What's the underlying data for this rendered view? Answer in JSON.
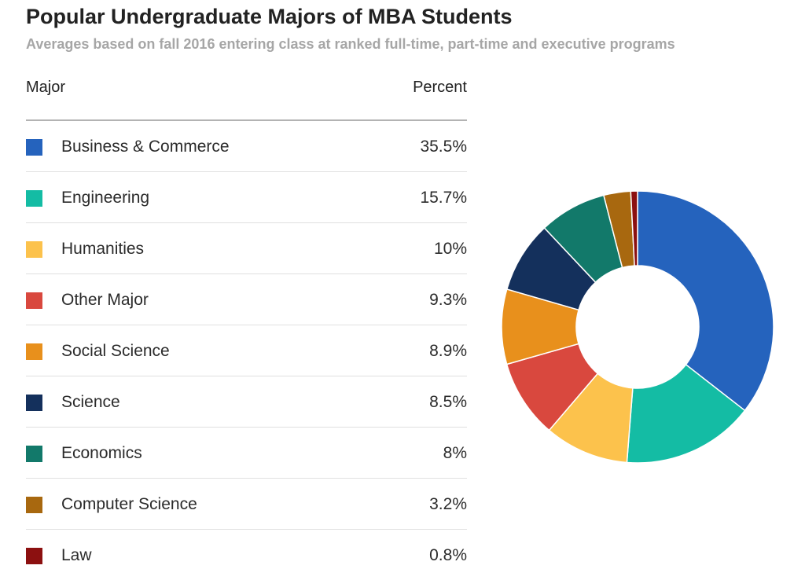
{
  "title": "Popular Undergraduate Majors of MBA Students",
  "subtitle": "Averages based on fall 2016 entering class at ranked full-time, part-time and executive programs",
  "table": {
    "header_major": "Major",
    "header_percent": "Percent"
  },
  "chart_data": {
    "type": "pie",
    "donut": true,
    "title": "Popular Undergraduate Majors of MBA Students",
    "subtitle": "Averages based on fall 2016 entering class at ranked full-time, part-time and executive programs",
    "categories": [
      "Business & Commerce",
      "Engineering",
      "Humanities",
      "Other Major",
      "Social Science",
      "Science",
      "Economics",
      "Computer Science",
      "Law"
    ],
    "values": [
      35.5,
      15.7,
      10,
      9.3,
      8.9,
      8.5,
      8,
      3.2,
      0.8
    ],
    "value_labels": [
      "35.5%",
      "15.7%",
      "10%",
      "9.3%",
      "8.9%",
      "8.5%",
      "8%",
      "3.2%",
      "0.8%"
    ],
    "colors": [
      "#2563bd",
      "#14bca4",
      "#fcc24c",
      "#d9483e",
      "#e8901c",
      "#14305c",
      "#12796a",
      "#a8680f",
      "#8c1010"
    ],
    "unit": "%"
  }
}
